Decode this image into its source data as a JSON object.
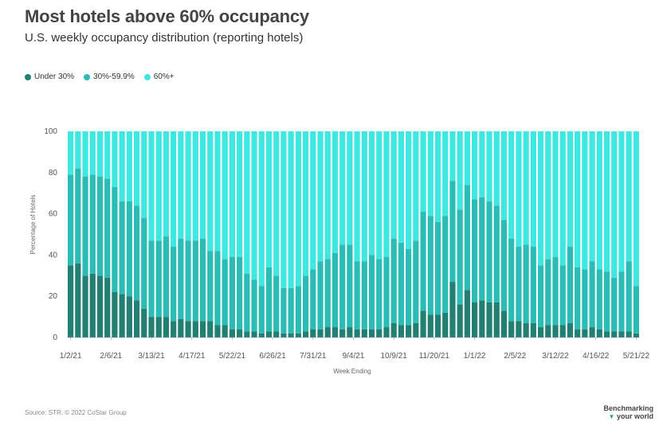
{
  "title": "Most hotels above 60% occupancy",
  "subtitle": "U.S. weekly occupancy distribution (reporting hotels)",
  "source": "Source: STR. © 2022 CoStar Group",
  "brand": {
    "line1": "Benchmarking",
    "line2": "your world"
  },
  "colors": {
    "under30": "#237f72",
    "mid": "#2bbcb5",
    "top": "#3ee7e0"
  },
  "chart_data": {
    "type": "bar",
    "stacked": true,
    "xlabel": "Week Ending",
    "ylabel": "Percentage of Hotels",
    "ylim": [
      0,
      100
    ],
    "yticks": [
      0,
      20,
      40,
      60,
      80,
      100
    ],
    "xticks": [
      "1/2/21",
      "2/6/21",
      "3/13/21",
      "4/17/21",
      "5/22/21",
      "6/26/21",
      "7/31/21",
      "9/4/21",
      "10/9/21",
      "11/20/21",
      "1/1/22",
      "2/5/22",
      "3/12/22",
      "4/16/22",
      "5/21/22"
    ],
    "legend_position": "top-left",
    "series": [
      {
        "name": "Under 30%",
        "values": [
          35,
          36,
          30,
          31,
          30,
          29,
          22,
          21,
          20,
          18,
          14,
          10,
          10,
          10,
          8,
          9,
          8,
          8,
          8,
          8,
          6,
          6,
          4,
          4,
          3,
          3,
          2,
          3,
          3,
          2,
          2,
          2,
          3,
          4,
          4,
          5,
          5,
          4,
          5,
          4,
          4,
          4,
          4,
          5,
          7,
          6,
          6,
          7,
          13,
          11,
          11,
          12,
          27,
          16,
          23,
          17,
          18,
          17,
          17,
          13,
          8,
          8,
          7,
          7,
          5,
          6,
          6,
          6,
          7,
          4,
          4,
          5,
          4,
          3,
          3,
          3,
          3,
          2
        ]
      },
      {
        "name": "30%-59.9%",
        "values": [
          44,
          46,
          48,
          48,
          48,
          48,
          51,
          45,
          46,
          46,
          44,
          37,
          37,
          39,
          36,
          39,
          39,
          39,
          40,
          34,
          36,
          32,
          35,
          35,
          28,
          25,
          23,
          31,
          27,
          22,
          22,
          23,
          27,
          29,
          33,
          33,
          36,
          41,
          40,
          33,
          33,
          36,
          34,
          34,
          41,
          40,
          37,
          40,
          48,
          48,
          45,
          47,
          49,
          46,
          51,
          50,
          50,
          49,
          47,
          44,
          40,
          36,
          38,
          37,
          30,
          32,
          33,
          29,
          37,
          30,
          29,
          32,
          29,
          29,
          26,
          29,
          34,
          23
        ]
      },
      {
        "name": "60%+",
        "values": [
          21,
          18,
          22,
          21,
          22,
          23,
          27,
          34,
          34,
          36,
          42,
          53,
          53,
          51,
          56,
          52,
          53,
          53,
          52,
          58,
          58,
          62,
          61,
          61,
          69,
          72,
          75,
          66,
          70,
          76,
          76,
          75,
          70,
          67,
          63,
          62,
          59,
          55,
          55,
          63,
          63,
          60,
          62,
          61,
          52,
          54,
          57,
          53,
          39,
          41,
          44,
          41,
          24,
          38,
          26,
          33,
          32,
          34,
          36,
          43,
          52,
          56,
          55,
          56,
          65,
          62,
          61,
          65,
          56,
          66,
          67,
          63,
          67,
          68,
          71,
          68,
          63,
          75
        ]
      }
    ]
  }
}
